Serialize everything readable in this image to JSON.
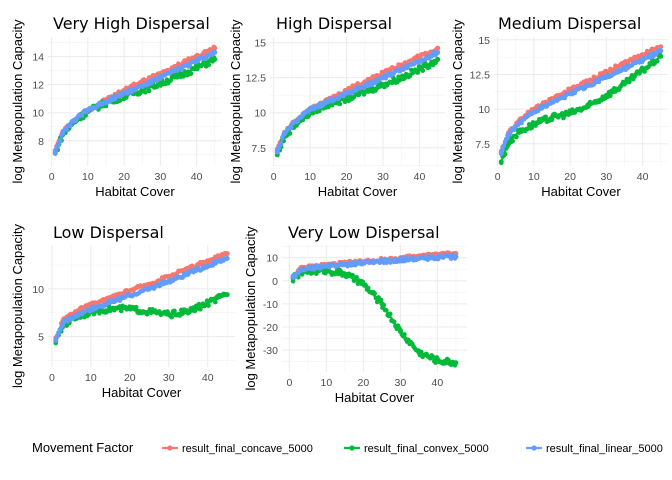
{
  "legend": {
    "title": "Movement Factor",
    "items": [
      {
        "name": "result_final_concave_5000",
        "color": "#F8766D"
      },
      {
        "name": "result_final_convex_5000",
        "color": "#00BA38"
      },
      {
        "name": "result_final_linear_5000",
        "color": "#619CFF"
      }
    ]
  },
  "chart_data": [
    {
      "type": "scatter",
      "title": "Very High Dispersal",
      "xlabel": "Habitat Cover",
      "ylabel": "log Metapopulation Capacity",
      "xlim": [
        -1,
        47
      ],
      "ylim": [
        6.2,
        15.4
      ],
      "xticks": [
        0,
        10,
        20,
        30,
        40
      ],
      "yticks": [
        8,
        10,
        12,
        14
      ],
      "grid": true,
      "series": [
        {
          "name": "result_final_concave_5000",
          "x": [
            1,
            3,
            6,
            10,
            15,
            20,
            25,
            30,
            35,
            40,
            45
          ],
          "y": [
            7.3,
            8.6,
            9.4,
            10.2,
            10.9,
            11.6,
            12.2,
            12.8,
            13.4,
            14.0,
            14.6
          ]
        },
        {
          "name": "result_final_convex_5000",
          "x": [
            1,
            3,
            6,
            10,
            15,
            20,
            25,
            30,
            35,
            40,
            45
          ],
          "y": [
            7.1,
            8.4,
            9.3,
            10.1,
            10.7,
            11.2,
            11.6,
            12.1,
            12.6,
            13.2,
            13.8
          ]
        },
        {
          "name": "result_final_linear_5000",
          "x": [
            1,
            3,
            6,
            10,
            15,
            20,
            25,
            30,
            35,
            40,
            45
          ],
          "y": [
            7.2,
            8.5,
            9.4,
            10.2,
            10.8,
            11.4,
            11.9,
            12.5,
            13.1,
            13.7,
            14.3
          ]
        }
      ]
    },
    {
      "type": "scatter",
      "title": "High Dispersal",
      "xlabel": "Habitat Cover",
      "ylabel": "log Metapopulation Capacity",
      "xlim": [
        -1,
        47
      ],
      "ylim": [
        6.2,
        15.4
      ],
      "xticks": [
        0,
        10,
        20,
        30,
        40
      ],
      "yticks": [
        7.5,
        10.0,
        12.5,
        15.0
      ],
      "grid": true,
      "series": [
        {
          "name": "result_final_concave_5000",
          "x": [
            1,
            3,
            6,
            10,
            15,
            20,
            25,
            30,
            35,
            40,
            45
          ],
          "y": [
            7.3,
            8.6,
            9.4,
            10.2,
            10.9,
            11.6,
            12.2,
            12.8,
            13.4,
            14.0,
            14.6
          ]
        },
        {
          "name": "result_final_convex_5000",
          "x": [
            1,
            3,
            6,
            10,
            15,
            20,
            25,
            30,
            35,
            40,
            45
          ],
          "y": [
            7.0,
            8.3,
            9.2,
            10.0,
            10.6,
            11.0,
            11.5,
            12.0,
            12.5,
            13.1,
            13.8
          ]
        },
        {
          "name": "result_final_linear_5000",
          "x": [
            1,
            3,
            6,
            10,
            15,
            20,
            25,
            30,
            35,
            40,
            45
          ],
          "y": [
            7.2,
            8.5,
            9.4,
            10.2,
            10.8,
            11.4,
            11.9,
            12.5,
            13.1,
            13.7,
            14.3
          ]
        }
      ]
    },
    {
      "type": "scatter",
      "title": "Medium Dispersal",
      "xlabel": "Habitat Cover",
      "ylabel": "log Metapopulation Capacity",
      "xlim": [
        -1,
        47
      ],
      "ylim": [
        5.9,
        15.2
      ],
      "xticks": [
        0,
        10,
        20,
        30,
        40
      ],
      "yticks": [
        7.5,
        10.0,
        12.5,
        15.0
      ],
      "grid": true,
      "series": [
        {
          "name": "result_final_concave_5000",
          "x": [
            1,
            3,
            6,
            10,
            15,
            20,
            25,
            30,
            35,
            40,
            45
          ],
          "y": [
            6.9,
            8.3,
            9.2,
            10.0,
            10.7,
            11.4,
            12.0,
            12.7,
            13.3,
            13.9,
            14.5
          ]
        },
        {
          "name": "result_final_convex_5000",
          "x": [
            1,
            3,
            6,
            10,
            15,
            20,
            25,
            30,
            35,
            40,
            45
          ],
          "y": [
            6.2,
            7.6,
            8.4,
            8.9,
            9.4,
            9.7,
            10.2,
            11.0,
            11.8,
            12.8,
            13.8
          ]
        },
        {
          "name": "result_final_linear_5000",
          "x": [
            1,
            3,
            6,
            10,
            15,
            20,
            25,
            30,
            35,
            40,
            45
          ],
          "y": [
            6.8,
            8.2,
            9.0,
            9.8,
            10.5,
            11.1,
            11.7,
            12.3,
            12.9,
            13.5,
            14.2
          ]
        }
      ]
    },
    {
      "type": "scatter",
      "title": "Low Dispersal",
      "xlabel": "Habitat Cover",
      "ylabel": "log Metapopulation Capacity",
      "xlim": [
        -1,
        47
      ],
      "ylim": [
        1.8,
        14.6
      ],
      "xticks": [
        0,
        10,
        20,
        30,
        40
      ],
      "yticks": [
        5,
        10
      ],
      "grid": true,
      "series": [
        {
          "name": "result_final_concave_5000",
          "x": [
            1,
            3,
            6,
            10,
            15,
            20,
            25,
            30,
            35,
            40,
            45
          ],
          "y": [
            4.8,
            6.8,
            7.6,
            8.3,
            9.0,
            9.8,
            10.5,
            11.3,
            12.1,
            12.9,
            13.7
          ]
        },
        {
          "name": "result_final_convex_5000",
          "x": [
            1,
            3,
            6,
            10,
            15,
            20,
            25,
            30,
            35,
            40,
            45
          ],
          "y": [
            4.5,
            6.2,
            7.0,
            7.6,
            7.9,
            7.9,
            7.6,
            7.3,
            7.6,
            8.5,
            9.4
          ]
        },
        {
          "name": "result_final_linear_5000",
          "x": [
            1,
            3,
            6,
            10,
            15,
            20,
            25,
            30,
            35,
            40,
            45
          ],
          "y": [
            4.6,
            6.5,
            7.2,
            7.9,
            8.6,
            9.3,
            10.0,
            10.8,
            11.6,
            12.4,
            13.2
          ]
        }
      ]
    },
    {
      "type": "scatter",
      "title": "Very Low Dispersal",
      "xlabel": "Habitat Cover",
      "ylabel": "log Metapopulation Capacity",
      "xlim": [
        -2,
        48
      ],
      "ylim": [
        -39.5,
        15.5
      ],
      "xticks": [
        0,
        10,
        20,
        30,
        40
      ],
      "yticks": [
        10,
        0,
        -10,
        -20,
        -30
      ],
      "grid": true,
      "series": [
        {
          "name": "result_final_concave_5000",
          "x": [
            1,
            3,
            6,
            10,
            15,
            20,
            25,
            30,
            35,
            40,
            45
          ],
          "y": [
            2.0,
            5.0,
            6.0,
            6.8,
            7.5,
            8.2,
            9.0,
            9.8,
            10.5,
            11.2,
            11.8
          ]
        },
        {
          "name": "result_final_convex_5000",
          "x": [
            1,
            3,
            6,
            10,
            15,
            20,
            25,
            30,
            35,
            40,
            45
          ],
          "y": [
            1.0,
            3.5,
            4.2,
            4.5,
            3.0,
            -1.5,
            -10.0,
            -22.0,
            -31.0,
            -34.5,
            -35.5
          ]
        },
        {
          "name": "result_final_linear_5000",
          "x": [
            1,
            3,
            6,
            10,
            15,
            20,
            25,
            30,
            35,
            40,
            45
          ],
          "y": [
            1.5,
            4.6,
            5.6,
            6.3,
            7.0,
            7.7,
            8.4,
            9.1,
            9.6,
            10.1,
            10.5
          ]
        }
      ]
    }
  ]
}
